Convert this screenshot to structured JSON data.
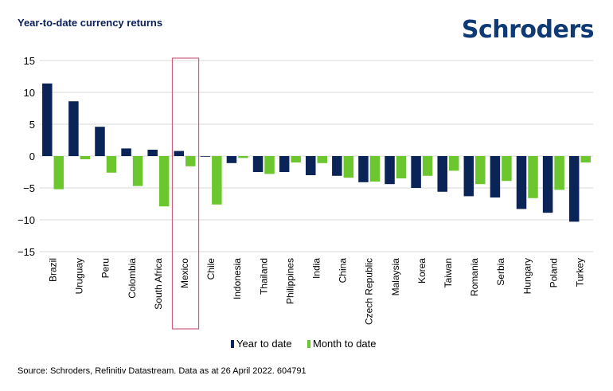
{
  "header": {
    "title": "Year-to-date currency returns",
    "logo_text": "Schroders"
  },
  "footer": {
    "source": "Source: Schroders, Refinitiv Datastream. Data as at 26 April 2022. 604791"
  },
  "colors": {
    "series1": "#0a2458",
    "series2": "#6cc72e",
    "highlight": "#d06080",
    "grid": "#d9d9d9",
    "logo": "#0e3a76"
  },
  "chart_data": {
    "type": "bar",
    "title": "Year-to-date currency returns",
    "xlabel": "",
    "ylabel": "",
    "ylim": [
      -15,
      15
    ],
    "yticks": [
      15,
      10,
      5,
      0,
      -5,
      -10,
      -15
    ],
    "highlighted_category": "Mexico",
    "legend_position": "bottom",
    "categories": [
      "Brazil",
      "Uruguay",
      "Peru",
      "Colombia",
      "South Africa",
      "Mexico",
      "Chile",
      "Indonesia",
      "Thailand",
      "Philippines",
      "India",
      "China",
      "Czech Republic",
      "Malaysia",
      "Korea",
      "Taiwan",
      "Romania",
      "Serbia",
      "Hungary",
      "Poland",
      "Turkey"
    ],
    "series": [
      {
        "name": "Year to date",
        "values": [
          11.4,
          8.6,
          4.6,
          1.2,
          1.0,
          0.8,
          -0.1,
          -1.1,
          -2.5,
          -2.5,
          -3.0,
          -3.1,
          -4.1,
          -4.4,
          -5.0,
          -5.6,
          -6.3,
          -6.5,
          -8.3,
          -8.9,
          -10.3
        ]
      },
      {
        "name": "Month to date",
        "values": [
          -5.2,
          -0.5,
          -2.6,
          -4.7,
          -7.9,
          -1.6,
          -7.6,
          -0.3,
          -2.8,
          -1.0,
          -1.1,
          -3.4,
          -4.0,
          -3.5,
          -3.1,
          -2.3,
          -4.4,
          -3.9,
          -6.6,
          -5.3,
          -1.0
        ]
      }
    ]
  }
}
